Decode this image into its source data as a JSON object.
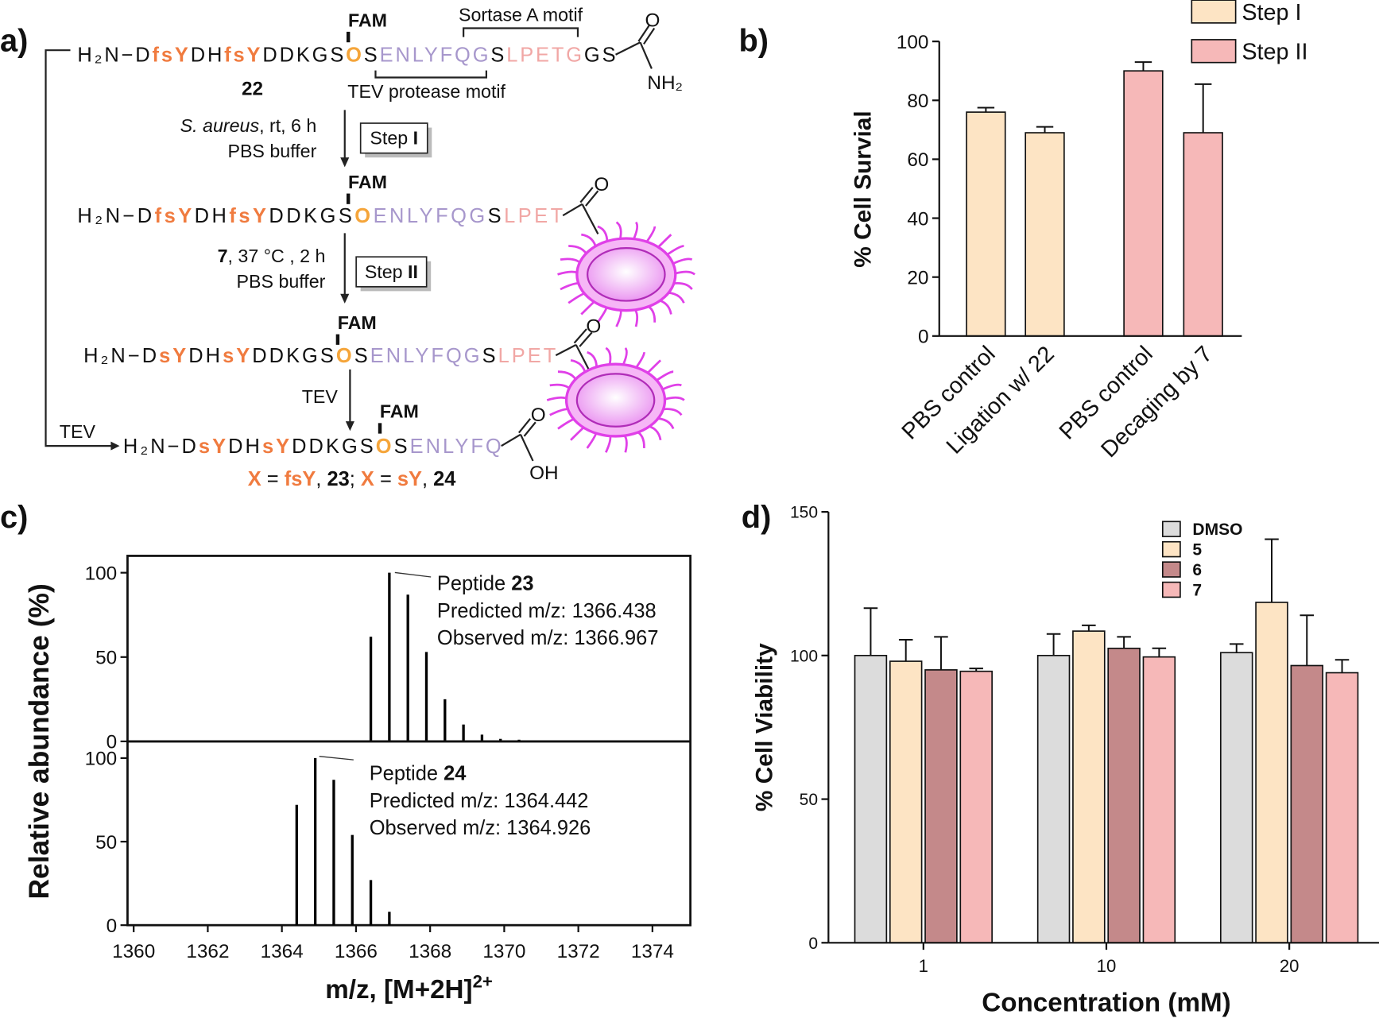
{
  "scheme": {
    "label": "a)",
    "rows": [
      {
        "segments": [
          {
            "t": "H₂N−D"
          },
          {
            "t": "fsY",
            "c": "#f07b3f",
            "w": "bold"
          },
          {
            "t": "DH"
          },
          {
            "t": "fsY",
            "c": "#f07b3f",
            "w": "bold"
          },
          {
            "t": "DDKGS"
          },
          {
            "t": "O",
            "c": "#f5a53a",
            "w": "bold"
          },
          {
            "t": "S"
          },
          {
            "t": "ENLYFQG",
            "c": "#a797cc"
          },
          {
            "t": "S"
          },
          {
            "t": "LPETG",
            "c": "#f1a7a5"
          },
          {
            "t": "GS"
          }
        ],
        "fam": "FAM",
        "end": [
          "O",
          "NH₂"
        ]
      },
      {
        "segments": [
          {
            "t": "H₂N−D"
          },
          {
            "t": "fsY",
            "c": "#f07b3f",
            "w": "bold"
          },
          {
            "t": "DH"
          },
          {
            "t": "fsY",
            "c": "#f07b3f",
            "w": "bold"
          },
          {
            "t": "DDKGS"
          },
          {
            "t": "O",
            "c": "#f5a53a",
            "w": "bold"
          },
          {
            "t": "ENLYFQG",
            "c": "#a797cc"
          },
          {
            "t": "S"
          },
          {
            "t": "LPET",
            "c": "#f1a7a5"
          }
        ],
        "fam": "FAM",
        "end": [
          "O"
        ]
      },
      {
        "segments": [
          {
            "t": "H₂N−D"
          },
          {
            "t": "sY",
            "c": "#f07b3f",
            "w": "bold"
          },
          {
            "t": "DH"
          },
          {
            "t": "sY",
            "c": "#f07b3f",
            "w": "bold"
          },
          {
            "t": "DDKGS"
          },
          {
            "t": "O",
            "c": "#f5a53a",
            "w": "bold"
          },
          {
            "t": "S"
          },
          {
            "t": "ENLYFQG",
            "c": "#a797cc"
          },
          {
            "t": "S"
          },
          {
            "t": "LPET",
            "c": "#f1a7a5"
          }
        ],
        "fam": "FAM",
        "end": [
          "O"
        ]
      },
      {
        "segments": [
          {
            "t": "H₂N−D"
          },
          {
            "t": "sY",
            "c": "#f07b3f",
            "w": "bold"
          },
          {
            "t": "DH"
          },
          {
            "t": "sY",
            "c": "#f07b3f",
            "w": "bold"
          },
          {
            "t": "DDKGS"
          },
          {
            "t": "O",
            "c": "#f5a53a",
            "w": "bold"
          },
          {
            "t": "S"
          },
          {
            "t": "ENLYFQ",
            "c": "#a797cc"
          }
        ],
        "fam": "FAM",
        "end": [
          "O",
          "OH"
        ]
      }
    ],
    "compound": "22",
    "sortase_motif": "Sortase A motif",
    "tev_motif": "TEV protease motif",
    "steps": [
      {
        "conditions": [
          [
            {
              "t": "S. aureus",
              "i": true
            },
            {
              "t": ", rt, 6 h"
            }
          ],
          [
            {
              "t": "PBS buffer"
            }
          ]
        ],
        "box": [
          {
            "t": "Step "
          },
          {
            "t": "I",
            "w": "bold"
          }
        ]
      },
      {
        "conditions": [
          [
            {
              "t": "7",
              "w": "bold"
            },
            {
              "t": ", 37 °C , 2 h"
            }
          ],
          [
            {
              "t": "PBS buffer"
            }
          ]
        ],
        "box": [
          {
            "t": "Step "
          },
          {
            "t": "II",
            "w": "bold"
          }
        ]
      },
      {
        "conditions": [
          [
            {
              "t": "TEV"
            }
          ]
        ]
      }
    ],
    "side_arrow": "TEV",
    "footer": [
      {
        "t": "X",
        "c": "#f07b3f",
        "w": "bold"
      },
      {
        "t": " = "
      },
      {
        "t": "fsY",
        "c": "#f07b3f",
        "w": "bold"
      },
      {
        "t": ", "
      },
      {
        "t": "23",
        "w": "bold"
      },
      {
        "t": "; "
      },
      {
        "t": "X",
        "c": "#f07b3f",
        "w": "bold"
      },
      {
        "t": " = "
      },
      {
        "t": "sY",
        "c": "#f07b3f",
        "w": "bold"
      },
      {
        "t": ", "
      },
      {
        "t": "24",
        "w": "bold"
      }
    ]
  },
  "chart_data": [
    {
      "type": "bar",
      "label": "b)",
      "ylabel": "% Cell Survial",
      "categories": [
        "PBS control",
        "Ligation w/ 22",
        "PBS control",
        "Decaging by 7"
      ],
      "series": [
        {
          "name": "Step I",
          "color": "#fde4c4",
          "values": [
            76,
            69,
            null,
            null
          ],
          "errors": [
            1.5,
            2,
            null,
            null
          ]
        },
        {
          "name": "Step II",
          "color": "#f6b8b8",
          "values": [
            null,
            null,
            90,
            69
          ],
          "errors": [
            null,
            null,
            3,
            16.5
          ]
        }
      ],
      "ylim": [
        0,
        100
      ],
      "yticks": [
        0,
        20,
        40,
        60,
        80,
        100
      ]
    },
    {
      "type": "stem",
      "label": "c)",
      "ylabel": "Relative abundance (%)",
      "xlabel": "m/z, [M+2H]",
      "xlabel_superscript": "2+",
      "color": "#000000",
      "xlim": [
        1360,
        1375
      ],
      "xticks": [
        1360,
        1362,
        1364,
        1366,
        1368,
        1370,
        1372,
        1374
      ],
      "panels": [
        {
          "x": [
            1366.4,
            1366.9,
            1367.4,
            1367.9,
            1368.4,
            1368.9,
            1369.4,
            1369.9,
            1370.4,
            1370.9
          ],
          "values": [
            62,
            100,
            87,
            53,
            25,
            10,
            4,
            1.5,
            1,
            0.5
          ],
          "ylim": [
            0,
            110
          ],
          "yticks": [
            0,
            50,
            100
          ],
          "annotation": [
            [
              {
                "t": "Peptide "
              },
              {
                "t": "23",
                "w": "bold"
              }
            ],
            [
              {
                "t": "Predicted m/z: 1366.438"
              }
            ],
            [
              {
                "t": "Observed m/z: 1366.967"
              }
            ]
          ]
        },
        {
          "x": [
            1364.4,
            1364.9,
            1365.4,
            1365.9,
            1366.4,
            1366.9
          ],
          "values": [
            72,
            100,
            87,
            54,
            27,
            8
          ],
          "ylim": [
            0,
            110
          ],
          "yticks": [
            0,
            50,
            100
          ],
          "annotation": [
            [
              {
                "t": "Peptide "
              },
              {
                "t": "24",
                "w": "bold"
              }
            ],
            [
              {
                "t": "Predicted m/z: 1364.442"
              }
            ],
            [
              {
                "t": "Observed m/z: 1364.926"
              }
            ]
          ]
        }
      ]
    },
    {
      "type": "bar",
      "label": "d)",
      "xlabel": "Concentration (mM)",
      "ylabel": "% Cell Viability",
      "categories": [
        "1",
        "10",
        "20"
      ],
      "series": [
        {
          "name": "DMSO",
          "color": "#dcdcdc",
          "values": [
            100,
            100,
            101
          ],
          "errors": [
            16.5,
            7.5,
            3
          ]
        },
        {
          "name": "5",
          "color": "#fde4c4",
          "values": [
            98,
            108.5,
            118.5
          ],
          "errors": [
            7.5,
            2,
            22
          ]
        },
        {
          "name": "6",
          "color": "#c4898a",
          "values": [
            95,
            102.5,
            96.5
          ],
          "errors": [
            11.5,
            4,
            17.5
          ]
        },
        {
          "name": "7",
          "color": "#f6b8b8",
          "values": [
            94.5,
            99.5,
            94
          ],
          "errors": [
            1,
            3,
            4.5
          ]
        }
      ],
      "ylim": [
        0,
        150
      ],
      "yticks": [
        0,
        50,
        100,
        150
      ]
    }
  ]
}
